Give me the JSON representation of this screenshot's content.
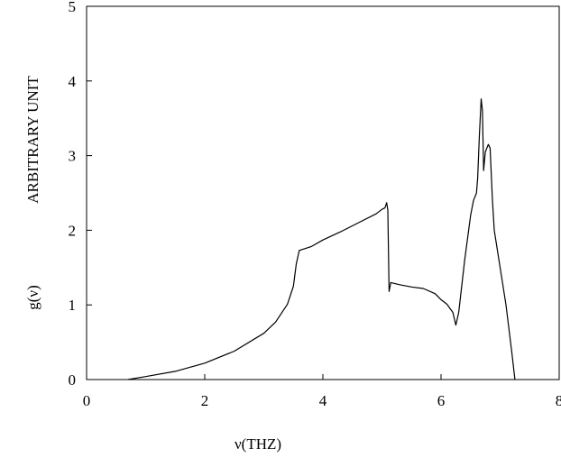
{
  "chart_data": {
    "type": "line",
    "title": "",
    "xlabel": "ν(THZ)",
    "ylabel": "ARBITRARY UNIT",
    "ylabel_secondary": "g(ν)",
    "xlim": [
      0,
      8
    ],
    "ylim": [
      0,
      5
    ],
    "xticks": [
      "0",
      "2",
      "4",
      "6",
      "8"
    ],
    "yticks": [
      "0",
      "1",
      "2",
      "3",
      "4",
      "5"
    ],
    "grid": false,
    "legend": "none",
    "line_color": "#000000",
    "series": [
      {
        "x": [
          0.7,
          1.0,
          1.5,
          2.0,
          2.5,
          3.0,
          3.2,
          3.4,
          3.5,
          3.55,
          3.6,
          3.8,
          4.0,
          4.3,
          4.6,
          4.9,
          5.0,
          5.05,
          5.08,
          5.1,
          5.12,
          5.15,
          5.3,
          5.5,
          5.7,
          5.9,
          6.0,
          6.1,
          6.2,
          6.25,
          6.3,
          6.4,
          6.5,
          6.55,
          6.6,
          6.62,
          6.65,
          6.68,
          6.7,
          6.72,
          6.75,
          6.8,
          6.83,
          6.87,
          6.9,
          7.0,
          7.1,
          7.2,
          7.25
        ],
        "y": [
          0.0,
          0.04,
          0.11,
          0.22,
          0.38,
          0.62,
          0.77,
          1.01,
          1.25,
          1.55,
          1.73,
          1.78,
          1.87,
          1.98,
          2.1,
          2.22,
          2.28,
          2.3,
          2.37,
          2.27,
          1.18,
          1.3,
          1.27,
          1.24,
          1.22,
          1.15,
          1.07,
          1.01,
          0.9,
          0.73,
          0.9,
          1.6,
          2.2,
          2.4,
          2.5,
          2.7,
          3.3,
          3.76,
          3.6,
          2.8,
          3.05,
          3.15,
          3.1,
          2.4,
          2.0,
          1.5,
          1.0,
          0.35,
          0.0
        ]
      }
    ]
  }
}
